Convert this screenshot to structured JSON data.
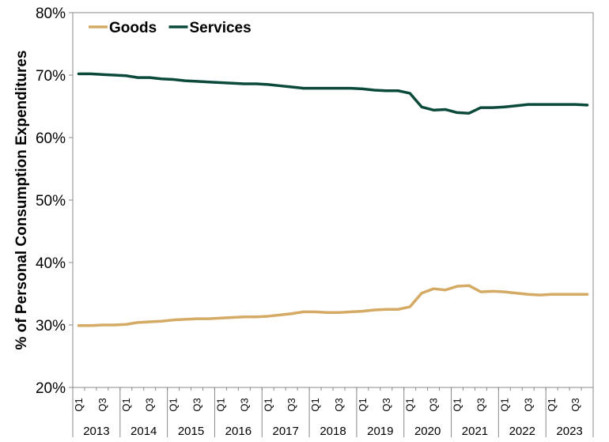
{
  "chart_data": {
    "type": "line",
    "ylabel": "% of  Personal Consumption Expenditures",
    "ylim": [
      20,
      80
    ],
    "y_ticks": [
      20,
      30,
      40,
      50,
      60,
      70,
      80
    ],
    "y_tick_labels": [
      "20%",
      "30%",
      "40%",
      "50%",
      "60%",
      "70%",
      "80%"
    ],
    "legend_position": "top-left",
    "grid": false,
    "years": [
      "2013",
      "2014",
      "2015",
      "2016",
      "2017",
      "2018",
      "2019",
      "2020",
      "2021",
      "2022",
      "2023"
    ],
    "quarter_labels": [
      "Q1",
      "Q3"
    ],
    "x_quarters_per_year": 4,
    "series": [
      {
        "name": "Goods",
        "color": "#D4AA64",
        "values": [
          29.9,
          29.9,
          30.0,
          30.0,
          30.1,
          30.4,
          30.5,
          30.6,
          30.8,
          30.9,
          31.0,
          31.0,
          31.1,
          31.2,
          31.3,
          31.3,
          31.4,
          31.6,
          31.8,
          32.1,
          32.1,
          32.0,
          32.0,
          32.1,
          32.2,
          32.4,
          32.5,
          32.5,
          32.9,
          35.1,
          35.8,
          35.6,
          36.2,
          36.3,
          35.3,
          35.4,
          35.3,
          35.1,
          34.9,
          34.8,
          34.9,
          34.9,
          34.9,
          34.9
        ]
      },
      {
        "name": "Services",
        "color": "#0B4A3A",
        "values": [
          70.2,
          70.2,
          70.1,
          70.0,
          69.9,
          69.6,
          69.6,
          69.4,
          69.3,
          69.1,
          69.0,
          68.9,
          68.8,
          68.7,
          68.6,
          68.6,
          68.5,
          68.3,
          68.1,
          67.9,
          67.9,
          67.9,
          67.9,
          67.9,
          67.8,
          67.6,
          67.5,
          67.5,
          67.1,
          64.9,
          64.4,
          64.5,
          64.0,
          63.9,
          64.8,
          64.8,
          64.9,
          65.1,
          65.3,
          65.3,
          65.3,
          65.3,
          65.3,
          65.2
        ]
      }
    ]
  }
}
